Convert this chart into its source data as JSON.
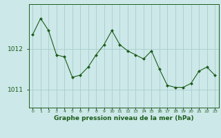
{
  "x": [
    0,
    1,
    2,
    3,
    4,
    5,
    6,
    7,
    8,
    9,
    10,
    11,
    12,
    13,
    14,
    15,
    16,
    17,
    18,
    19,
    20,
    21,
    22,
    23
  ],
  "y": [
    1012.35,
    1012.75,
    1012.45,
    1011.85,
    1011.8,
    1011.3,
    1011.35,
    1011.55,
    1011.85,
    1012.1,
    1012.45,
    1012.1,
    1011.95,
    1011.85,
    1011.75,
    1011.95,
    1011.5,
    1011.1,
    1011.05,
    1011.05,
    1011.15,
    1011.45,
    1011.55,
    1011.35
  ],
  "title": "Graphe pression niveau de la mer (hPa)",
  "bg_color": "#cce8e8",
  "line_color": "#1a5c1a",
  "marker_color": "#1a5c1a",
  "grid_color": "#aacccc",
  "label_color": "#1a5c1a",
  "yticks": [
    1011,
    1012
  ],
  "ylim": [
    1010.55,
    1013.1
  ],
  "xlim": [
    -0.5,
    23.5
  ]
}
